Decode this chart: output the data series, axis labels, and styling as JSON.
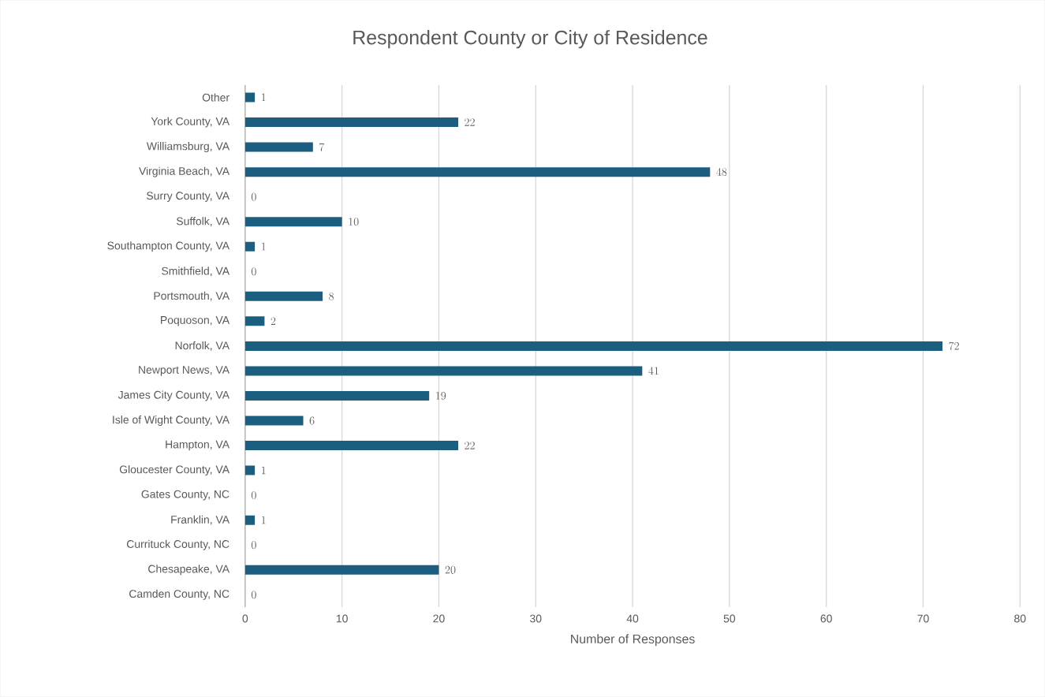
{
  "chart_data": {
    "type": "bar",
    "orientation": "horizontal",
    "title": "Respondent County or City of Residence",
    "xlabel": "Number of Responses",
    "categories": [
      "Other",
      "York County, VA",
      "Williamsburg, VA",
      "Virginia Beach, VA",
      "Surry County, VA",
      "Suffolk, VA",
      "Southampton County, VA",
      "Smithfield, VA",
      "Portsmouth, VA",
      "Poquoson, VA",
      "Norfolk, VA",
      "Newport News, VA",
      "James City County, VA",
      "Isle of Wight County, VA",
      "Hampton, VA",
      "Gloucester County, VA",
      "Gates County, NC",
      "Franklin, VA",
      "Currituck County, NC",
      "Chesapeake, VA",
      "Camden County, NC"
    ],
    "values": [
      1,
      22,
      7,
      48,
      0,
      10,
      1,
      0,
      8,
      2,
      72,
      41,
      19,
      6,
      22,
      1,
      0,
      1,
      0,
      20,
      0
    ],
    "color": "#1b5e80",
    "xlim": [
      0,
      80
    ],
    "xticks": [
      0,
      10,
      20,
      30,
      40,
      50,
      60,
      70,
      80
    ],
    "grid": "x",
    "data_labels": true
  }
}
